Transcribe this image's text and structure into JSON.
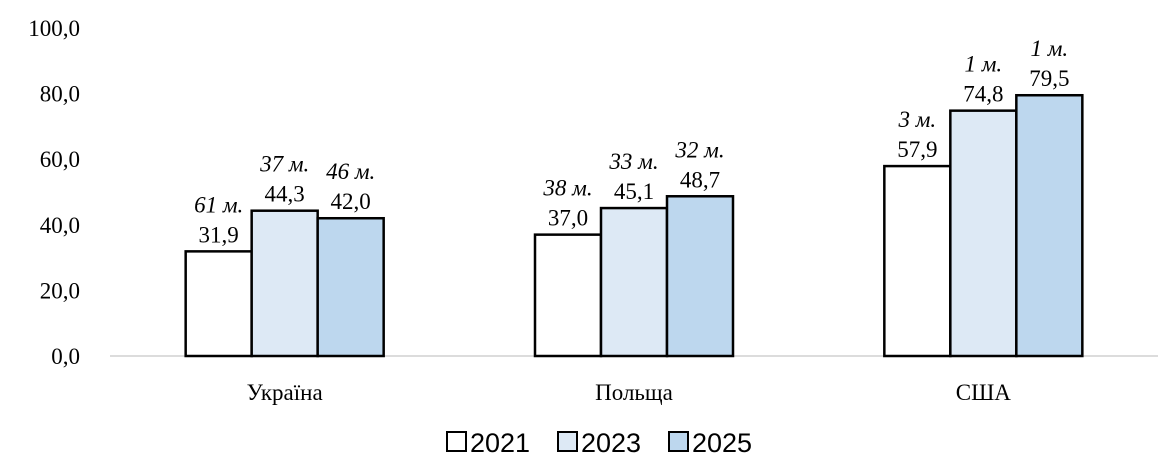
{
  "chart_data": {
    "type": "bar",
    "categories": [
      "Україна",
      "Польща",
      "США"
    ],
    "series": [
      {
        "name": "2021",
        "values": [
          31.9,
          37.0,
          57.9
        ],
        "labels": [
          "31,9",
          "37,0",
          "57,9"
        ],
        "ranks": [
          "61 м.",
          "38 м.",
          "3 м."
        ],
        "color": "#ffffff"
      },
      {
        "name": "2023",
        "values": [
          44.3,
          45.1,
          74.8
        ],
        "labels": [
          "44,3",
          "45,1",
          "74,8"
        ],
        "ranks": [
          "37 м.",
          "33 м.",
          "1 м."
        ],
        "color": "#dde9f5"
      },
      {
        "name": "2025",
        "values": [
          42.0,
          48.7,
          79.5
        ],
        "labels": [
          "42,0",
          "48,7",
          "79,5"
        ],
        "ranks": [
          "46 м.",
          "32 м.",
          "1 м."
        ],
        "color": "#bdd7ee"
      }
    ],
    "y_ticks": [
      "0,0",
      "20,0",
      "40,0",
      "60,0",
      "80,0",
      "100,0"
    ],
    "ylim": [
      0,
      100
    ],
    "grid": false,
    "legend_position": "bottom",
    "title": "",
    "xlabel": "",
    "ylabel": ""
  }
}
